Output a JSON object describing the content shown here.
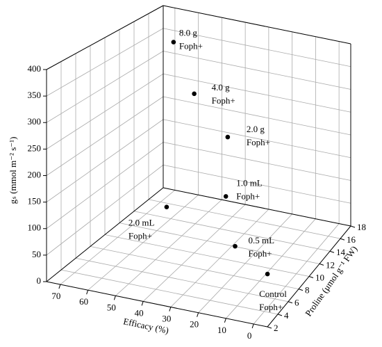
{
  "chart_data": {
    "type": "scatter3d",
    "xlabel": "Efficacy (%)",
    "ylabel": "Proline (μmol g⁻¹ FW)",
    "zlabel": "gₛ (mmol m⁻² s⁻¹)",
    "x": [
      0,
      15,
      30,
      60,
      25,
      40,
      55
    ],
    "y": [
      4.6,
      6,
      11,
      13.4,
      9.2,
      10,
      12.6
    ],
    "z": [
      65,
      87,
      114,
      32,
      259,
      323,
      390
    ],
    "labels": [
      [
        "Control",
        "Foph+"
      ],
      [
        "0.5 mL",
        "Foph+"
      ],
      [
        "1.0 mL",
        "Foph+"
      ],
      [
        "2.0 mL",
        "Foph+"
      ],
      [
        "2.0 g",
        "Foph+"
      ],
      [
        "4.0 g",
        "Foph+"
      ],
      [
        "8.0 g",
        "Foph+"
      ]
    ],
    "color": "#000000",
    "xlim": [
      75,
      -5
    ],
    "xticks": [
      0,
      10,
      20,
      30,
      40,
      50,
      60,
      70
    ],
    "ylim": [
      2,
      18
    ],
    "yticks": [
      2,
      4,
      6,
      8,
      10,
      12,
      14,
      16,
      18
    ],
    "zlim": [
      0,
      400
    ],
    "zticks": [
      0,
      50,
      100,
      150,
      200,
      250,
      300,
      350,
      400
    ],
    "grid": true
  }
}
